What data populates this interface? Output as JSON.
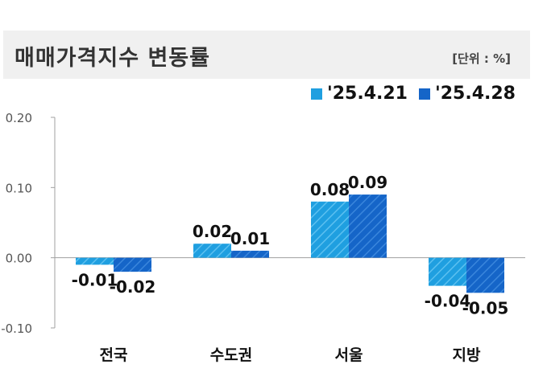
{
  "header": {
    "title": "매매가격지수 변동률",
    "unit": "[단위 : %]"
  },
  "chart_data": {
    "type": "bar",
    "categories": [
      "전국",
      "수도권",
      "서울",
      "지방"
    ],
    "series": [
      {
        "name": "'25.4.21",
        "values": [
          -0.01,
          0.02,
          0.08,
          -0.04
        ],
        "labels": [
          "-0.01",
          "0.02",
          "0.08",
          "-0.04"
        ],
        "color": "#1f9fe0"
      },
      {
        "name": "'25.4.28",
        "values": [
          -0.02,
          0.01,
          0.09,
          -0.05
        ],
        "labels": [
          "-0.02",
          "0.01",
          "0.09",
          "-0.05"
        ],
        "color": "#1565c8"
      }
    ],
    "yticks": [
      "0.20",
      "0.10",
      "0.00",
      "-0.10"
    ],
    "ylim": [
      -0.1,
      0.2
    ],
    "legend": "top-right",
    "grid": false
  }
}
